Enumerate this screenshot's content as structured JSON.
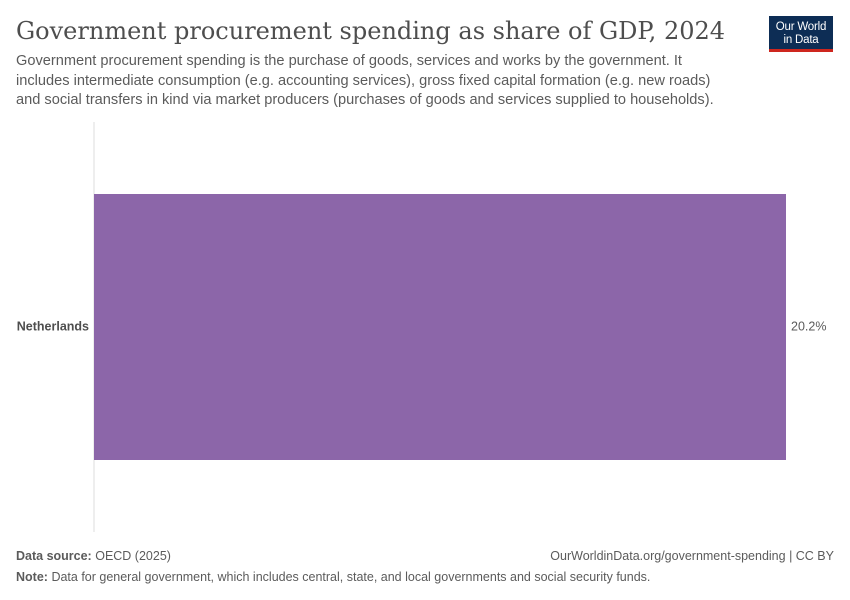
{
  "header": {
    "title": "Government procurement spending as share of GDP, 2024",
    "subtitle": "Government procurement spending is the purchase of goods, services and works by the government. It includes intermediate consumption (e.g. accounting services), gross fixed capital formation (e.g. new roads) and social transfers in kind via market producers (purchases of goods and services supplied to households)."
  },
  "logo": {
    "line1": "Our World",
    "line2": "in Data",
    "background": "#0d2d55",
    "accent": "#ce261e"
  },
  "chart_data": {
    "type": "bar",
    "orientation": "horizontal",
    "title": "Government procurement spending as share of GDP, 2024",
    "categories": [
      "Netherlands"
    ],
    "values": [
      20.2
    ],
    "value_labels": [
      "20.2%"
    ],
    "unit": "%",
    "xlim": [
      0,
      20.2
    ],
    "bar_color": "#8c66a9",
    "axis_color": "#dddddd",
    "value_label_color": "#5b5b5b",
    "category_label_color": "#4e4e4e"
  },
  "footer": {
    "source_label": "Data source:",
    "source_value": "OECD (2025)",
    "url_text": "OurWorldinData.org/government-spending | CC BY",
    "note_label": "Note:",
    "note_text": "Data for general government, which includes central, state, and local governments and social security funds."
  }
}
